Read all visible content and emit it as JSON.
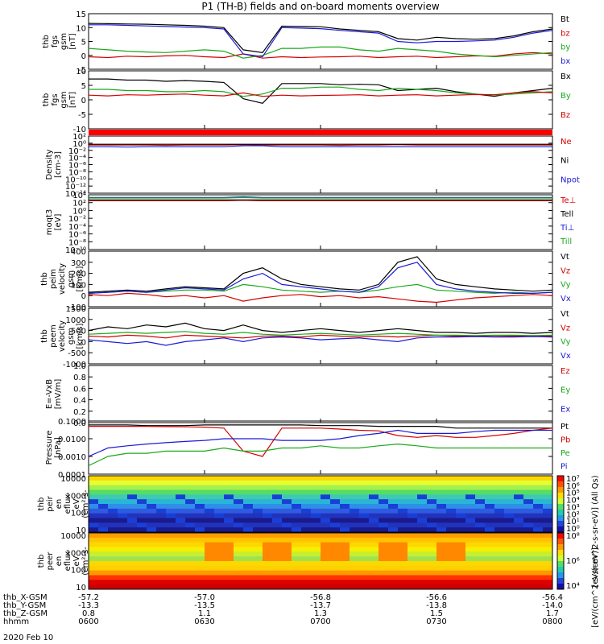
{
  "title": "P1 (TH-B) fields and on-board moments overview",
  "chart_data": [
    {
      "name": "fgs-magnitude",
      "type": "line",
      "ylabel": [
        "thb",
        "fgs",
        "gsm",
        "[nT]"
      ],
      "ylim": [
        -5,
        15
      ],
      "yticks": [
        "15",
        "10",
        "5",
        "0",
        "-5"
      ],
      "series": [
        {
          "name": "Bt",
          "color": "#000000",
          "values": [
            11.5,
            11.4,
            11.3,
            11.2,
            11.0,
            10.8,
            10.5,
            10.0,
            2.0,
            1.0,
            10.5,
            10.4,
            10.3,
            9.5,
            9.0,
            8.5,
            6.0,
            5.5,
            6.5,
            6.0,
            5.8,
            6.0,
            7.0,
            8.5,
            9.5
          ]
        },
        {
          "name": "bz",
          "color": "#d40000",
          "values": [
            -0.5,
            -0.8,
            -0.3,
            -0.5,
            -0.2,
            0.0,
            -0.5,
            -0.8,
            0.5,
            -1.0,
            -0.5,
            -0.8,
            -0.6,
            -0.5,
            -0.3,
            -0.8,
            -0.5,
            -0.3,
            -0.8,
            -0.5,
            -0.2,
            -0.3,
            0.5,
            1.0,
            0.5
          ]
        },
        {
          "name": "by",
          "color": "#1aa81a",
          "values": [
            2.5,
            2.0,
            1.5,
            1.2,
            1.0,
            1.5,
            2.0,
            1.5,
            -1.0,
            0.0,
            2.5,
            2.5,
            3.0,
            3.0,
            2.0,
            1.5,
            2.5,
            2.0,
            1.5,
            0.5,
            0.0,
            -0.5,
            0.0,
            0.5,
            1.0
          ]
        },
        {
          "name": "bx",
          "color": "#1a1ad4",
          "values": [
            11.0,
            11.0,
            10.8,
            10.6,
            10.4,
            10.2,
            10.0,
            9.5,
            0.5,
            -0.5,
            10.0,
            9.8,
            9.6,
            9.0,
            8.5,
            8.0,
            5.0,
            4.5,
            5.0,
            5.0,
            5.2,
            5.5,
            6.5,
            8.0,
            9.0
          ]
        }
      ]
    },
    {
      "name": "fgs-components",
      "type": "line",
      "ylabel": [
        "thb",
        "fgs",
        "gsm",
        "[nT]"
      ],
      "ylim": [
        -15,
        10
      ],
      "yticks": [
        "10",
        "5",
        "0",
        "-5",
        "-10"
      ],
      "series": [
        {
          "name": "Bx",
          "color": "#000000",
          "values": [
            6.5,
            6.5,
            6.0,
            6.0,
            5.5,
            5.8,
            5.5,
            5.0,
            -2.0,
            -4.0,
            4.5,
            4.5,
            4.5,
            4.0,
            4.2,
            4.0,
            1.5,
            2.0,
            2.5,
            1.0,
            0.0,
            -1.0,
            0.5,
            1.5,
            2.5
          ]
        },
        {
          "name": "By",
          "color": "#1aa81a",
          "values": [
            2.0,
            2.0,
            1.5,
            1.5,
            1.0,
            1.0,
            1.5,
            1.0,
            -1.0,
            0.0,
            2.5,
            2.5,
            3.0,
            3.0,
            2.0,
            1.5,
            2.5,
            2.0,
            1.5,
            0.5,
            0.0,
            -0.5,
            0.0,
            0.5,
            1.0
          ]
        },
        {
          "name": "Bz",
          "color": "#d40000",
          "values": [
            -0.5,
            -0.8,
            -0.3,
            -0.5,
            -0.2,
            0.0,
            -0.5,
            -0.8,
            0.5,
            -1.0,
            -0.5,
            -0.8,
            -0.6,
            -0.5,
            -0.3,
            -0.8,
            -0.5,
            -0.3,
            -0.8,
            -0.5,
            -0.2,
            -0.3,
            0.5,
            1.0,
            0.5
          ]
        }
      ]
    },
    {
      "name": "density",
      "type": "line",
      "scale": "log",
      "ylabel": [
        "Density",
        "[cm-3]"
      ],
      "ylim": [
        1e-14,
        100
      ],
      "yticks": [
        "10²",
        "10⁰",
        "10⁻²",
        "10⁻⁴",
        "10⁻⁶",
        "10⁻⁸",
        "10⁻¹⁰",
        "10⁻¹²",
        "10⁻¹⁴"
      ],
      "series": [
        {
          "name": "Ne",
          "color": "#d40000",
          "values": [
            0.3,
            0.3,
            0.3,
            0.3,
            0.25,
            0.3,
            0.3,
            0.3,
            0.4,
            0.3,
            0.3,
            0.3,
            0.3,
            0.25,
            0.3,
            0.3,
            0.4,
            0.3,
            0.3,
            0.3,
            0.3,
            0.3,
            0.3,
            0.3,
            0.3
          ]
        },
        {
          "name": "Ni",
          "color": "#000000",
          "values": [
            0.5,
            0.5,
            0.5,
            0.5,
            0.5,
            0.5,
            0.5,
            0.5,
            0.5,
            0.5,
            0.5,
            0.5,
            0.5,
            0.5,
            0.5,
            0.5,
            0.5,
            0.5,
            0.5,
            0.5,
            0.5,
            0.5,
            0.5,
            0.5,
            0.5
          ]
        },
        {
          "name": "Npot",
          "color": "#1a1ad4",
          "values": [
            0.1,
            0.1,
            0.08,
            0.1,
            0.1,
            0.1,
            0.1,
            0.1,
            0.2,
            0.2,
            0.1,
            0.1,
            0.1,
            0.1,
            0.1,
            0.1,
            0.1,
            0.1,
            0.1,
            0.1,
            0.1,
            0.1,
            0.1,
            0.1,
            0.1
          ]
        }
      ]
    },
    {
      "name": "temperature",
      "type": "line",
      "scale": "log",
      "ylabel": [
        "moqt3",
        "[eV]"
      ],
      "ylim": [
        1e-10,
        10000
      ],
      "yticks": [
        "10⁴",
        "10²",
        "10⁰",
        "10⁻²",
        "10⁻⁴",
        "10⁻⁶",
        "10⁻⁸",
        "10⁻¹⁰"
      ],
      "series": [
        {
          "name": "Te⊥",
          "color": "#d40000",
          "values": [
            300,
            300,
            300,
            300,
            300,
            300,
            300,
            300,
            400,
            300,
            300,
            300,
            300,
            300,
            300,
            300,
            300,
            300,
            300,
            300,
            300,
            300,
            300,
            300,
            300
          ]
        },
        {
          "name": "Tell",
          "color": "#000000",
          "values": [
            500,
            500,
            500,
            500,
            500,
            500,
            500,
            500,
            500,
            500,
            500,
            500,
            500,
            500,
            500,
            500,
            500,
            500,
            500,
            500,
            500,
            500,
            500,
            500,
            500
          ]
        },
        {
          "name": "Ti⊥",
          "color": "#1a1ad4",
          "values": [
            2000,
            2000,
            2000,
            2000,
            2000,
            2000,
            2000,
            2000,
            3000,
            2000,
            2000,
            2000,
            2000,
            2000,
            2000,
            2000,
            2000,
            2000,
            2000,
            2000,
            2000,
            2000,
            2000,
            2000,
            2000
          ]
        },
        {
          "name": "Till",
          "color": "#1aa81a",
          "values": [
            1500,
            1500,
            1500,
            1500,
            1500,
            1500,
            1500,
            1500,
            2000,
            1500,
            1500,
            1500,
            1500,
            1500,
            1500,
            1500,
            1500,
            1500,
            1500,
            1500,
            1500,
            1500,
            1500,
            1500,
            1500
          ]
        }
      ]
    },
    {
      "name": "ion-velocity",
      "type": "line",
      "ylabel": [
        "thb",
        "peim",
        "velocity",
        "gsm",
        "[km/s]"
      ],
      "ylim": [
        -100,
        400
      ],
      "yticks": [
        "400",
        "300",
        "200",
        "100",
        "0",
        "-100"
      ],
      "series": [
        {
          "name": "Vt",
          "color": "#000000",
          "values": [
            30,
            40,
            50,
            40,
            60,
            80,
            70,
            60,
            200,
            250,
            150,
            100,
            80,
            60,
            50,
            100,
            300,
            350,
            150,
            100,
            80,
            60,
            50,
            40,
            50
          ]
        },
        {
          "name": "Vz",
          "color": "#d40000",
          "values": [
            10,
            0,
            20,
            10,
            -10,
            0,
            -20,
            0,
            -50,
            -20,
            0,
            10,
            -10,
            0,
            -20,
            -10,
            -30,
            -50,
            -60,
            -40,
            -20,
            -10,
            0,
            10,
            0
          ]
        },
        {
          "name": "Vy",
          "color": "#1aa81a",
          "values": [
            20,
            30,
            40,
            30,
            40,
            50,
            50,
            40,
            100,
            80,
            50,
            40,
            30,
            40,
            30,
            50,
            80,
            100,
            50,
            40,
            30,
            20,
            30,
            20,
            30
          ]
        },
        {
          "name": "Vx",
          "color": "#1a1ad4",
          "values": [
            20,
            30,
            40,
            30,
            50,
            70,
            60,
            50,
            150,
            200,
            100,
            80,
            60,
            40,
            30,
            80,
            250,
            300,
            100,
            60,
            40,
            30,
            20,
            20,
            30
          ]
        }
      ]
    },
    {
      "name": "electron-velocity",
      "type": "line",
      "ylabel": [
        "thb",
        "peem",
        "velocity",
        "gsm",
        "[km/s]"
      ],
      "ylim": [
        -1500,
        1500
      ],
      "yticks": [
        "1500",
        "1000",
        "500",
        "0",
        "-500",
        "-1000"
      ],
      "series": [
        {
          "name": "Vt",
          "color": "#000000",
          "values": [
            300,
            500,
            400,
            600,
            500,
            700,
            400,
            300,
            600,
            300,
            200,
            300,
            400,
            300,
            200,
            300,
            400,
            300,
            200,
            200,
            150,
            200,
            200,
            150,
            200
          ]
        },
        {
          "name": "Vz",
          "color": "#d40000",
          "values": [
            0,
            -50,
            50,
            0,
            -100,
            50,
            0,
            -50,
            -100,
            0,
            0,
            -50,
            50,
            0,
            -50,
            0,
            -50,
            0,
            50,
            0,
            0,
            -20,
            0,
            20,
            0
          ]
        },
        {
          "name": "Vy",
          "color": "#1aa81a",
          "values": [
            100,
            150,
            200,
            150,
            200,
            250,
            150,
            100,
            200,
            100,
            50,
            100,
            150,
            100,
            50,
            100,
            150,
            100,
            50,
            50,
            30,
            50,
            50,
            30,
            50
          ]
        },
        {
          "name": "Vx",
          "color": "#1a1ad4",
          "values": [
            -200,
            -300,
            -400,
            -300,
            -500,
            -300,
            -200,
            -100,
            -300,
            -100,
            -50,
            -100,
            -200,
            -150,
            -100,
            -200,
            -300,
            -100,
            -50,
            -50,
            -30,
            -50,
            -50,
            -30,
            -50
          ]
        }
      ]
    },
    {
      "name": "electric-field",
      "type": "line",
      "ylabel": [
        "E=-VxB",
        "[mV/m]"
      ],
      "ylim": [
        0,
        1
      ],
      "yticks": [
        "1.0",
        "0.8",
        "0.6",
        "0.4",
        "0.2",
        "0.0"
      ],
      "series": [
        {
          "name": "Ez",
          "color": "#d40000",
          "values": []
        },
        {
          "name": "Ey",
          "color": "#1aa81a",
          "values": []
        },
        {
          "name": "Ex",
          "color": "#1a1ad4",
          "values": []
        }
      ]
    },
    {
      "name": "pressure",
      "type": "line",
      "scale": "log",
      "ylabel": [
        "Pressure",
        "[nPa]"
      ],
      "ylim": [
        0.0001,
        0.1
      ],
      "yticks": [
        "0.1000",
        "0.0100",
        "0.0010",
        "0.0001"
      ],
      "series": [
        {
          "name": "Pt",
          "color": "#000000",
          "values": [
            0.06,
            0.06,
            0.06,
            0.055,
            0.055,
            0.055,
            0.06,
            0.06,
            0.06,
            0.06,
            0.06,
            0.06,
            0.055,
            0.055,
            0.055,
            0.05,
            0.05,
            0.05,
            0.05,
            0.04,
            0.04,
            0.04,
            0.04,
            0.04,
            0.04
          ]
        },
        {
          "name": "Pb",
          "color": "#d40000",
          "values": [
            0.05,
            0.05,
            0.05,
            0.05,
            0.048,
            0.047,
            0.045,
            0.04,
            0.002,
            0.001,
            0.04,
            0.04,
            0.04,
            0.035,
            0.03,
            0.028,
            0.015,
            0.012,
            0.015,
            0.012,
            0.012,
            0.015,
            0.02,
            0.03,
            0.04
          ]
        },
        {
          "name": "Pe",
          "color": "#1aa81a",
          "values": [
            0.0003,
            0.001,
            0.0015,
            0.0015,
            0.002,
            0.002,
            0.002,
            0.003,
            0.002,
            0.002,
            0.003,
            0.003,
            0.004,
            0.003,
            0.003,
            0.004,
            0.005,
            0.004,
            0.003,
            0.003,
            0.003,
            0.003,
            0.003,
            0.003,
            0.003
          ]
        },
        {
          "name": "Pi",
          "color": "#1a1ad4",
          "values": [
            0.001,
            0.003,
            0.004,
            0.005,
            0.006,
            0.007,
            0.008,
            0.01,
            0.01,
            0.01,
            0.008,
            0.008,
            0.008,
            0.01,
            0.015,
            0.02,
            0.03,
            0.02,
            0.02,
            0.02,
            0.025,
            0.03,
            0.03,
            0.03,
            0.03
          ]
        }
      ]
    },
    {
      "name": "ion-spectrogram",
      "type": "heatmap",
      "ylabel": [
        "thb",
        "peir",
        "en",
        "eflux",
        "eV",
        "(cm²-s-",
        "sr-eV)"
      ],
      "yticks": [
        "10000",
        "1000",
        "100",
        "10"
      ],
      "colorbar_label": "[eV/(cm^2-s-sr-eV)] (All Qs)",
      "colorbar_ticks": [
        "10⁷",
        "10⁶",
        "10⁵",
        "10⁴",
        "10³",
        "10²",
        "10¹",
        "10⁰"
      ]
    },
    {
      "name": "electron-spectrogram",
      "type": "heatmap",
      "ylabel": [
        "thb",
        "peer",
        "en",
        "eflux",
        "eV",
        "(cm²-s-",
        "sr-eV)"
      ],
      "yticks": [
        "10000",
        "1000",
        "100",
        "10"
      ],
      "colorbar_label": "[eV/(cm^2-s-sr-eV)]",
      "colorbar_ticks": [
        "10⁸",
        "10⁶",
        "10⁴"
      ]
    }
  ],
  "x_axis": {
    "rows": [
      {
        "label": "thb_X-GSM",
        "values": [
          "-57.2",
          "-57.0",
          "-56.8",
          "-56.6",
          "-56.4"
        ]
      },
      {
        "label": "thb_Y-GSM",
        "values": [
          "-13.3",
          "-13.5",
          "-13.7",
          "-13.8",
          "-14.0"
        ]
      },
      {
        "label": "thb_Z-GSM",
        "values": [
          "0.8",
          "1.1",
          "1.3",
          "1.5",
          "1.7"
        ]
      },
      {
        "label": "hhmm",
        "values": [
          "0600",
          "0630",
          "0700",
          "0730",
          "0800"
        ]
      }
    ],
    "date": "2020 Feb 10"
  },
  "colors": {
    "axis": "#000000",
    "bar": "#ff0000"
  }
}
